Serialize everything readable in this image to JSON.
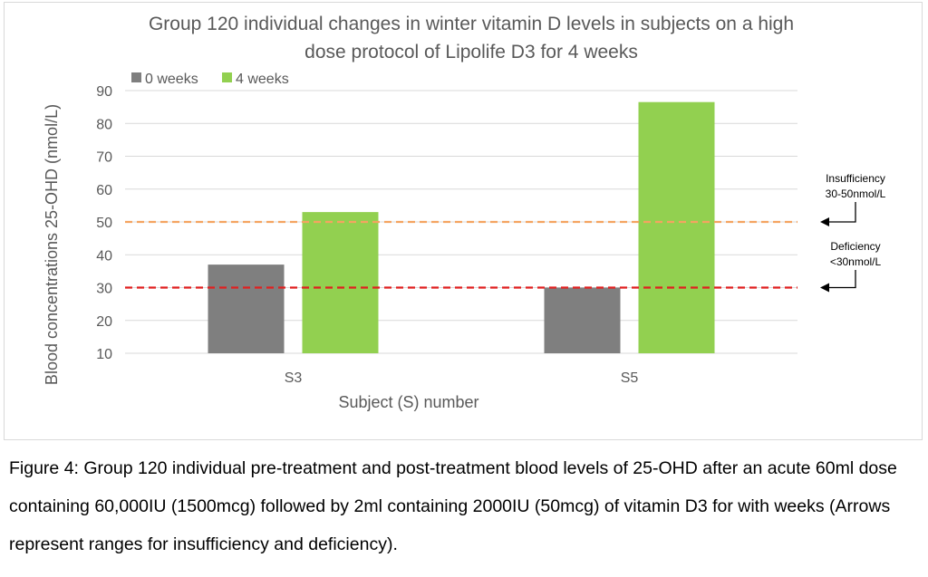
{
  "chart_data": {
    "type": "bar",
    "title_lines": [
      "Group 120 individual changes in winter vitamin D levels in subjects on a high",
      "dose protocol of Lipolife D3 for 4 weeks"
    ],
    "xlabel": "Subject (S) number",
    "ylabel": "Blood concentrations 25-OHD (nmol/L)",
    "categories": [
      "S3",
      "S5"
    ],
    "series": [
      {
        "name": "0 weeks",
        "values": [
          37,
          30
        ],
        "color": "#7f7f7f"
      },
      {
        "name": "4 weeks",
        "values": [
          53,
          86.5
        ],
        "color": "#92d050"
      }
    ],
    "ylim": [
      10,
      90
    ],
    "yticks": [
      10,
      20,
      30,
      40,
      50,
      60,
      70,
      80,
      90
    ],
    "grid": true,
    "legend_position": "top-left",
    "reference_lines": [
      {
        "value": 50,
        "color": "#f4a460",
        "label_lines": [
          "Insufficiency",
          "30-50nmol/L"
        ]
      },
      {
        "value": 30,
        "color": "#e02020",
        "label_lines": [
          "Deficiency",
          "<30nmol/L"
        ]
      }
    ]
  },
  "caption": "Figure 4: Group 120 individual pre-treatment and post-treatment blood levels of 25-OHD after an acute 60ml dose containing 60,000IU (1500mcg) followed by 2ml containing 2000IU (50mcg) of vitamin D3 for with weeks (Arrows represent ranges for insufficiency and deficiency)."
}
